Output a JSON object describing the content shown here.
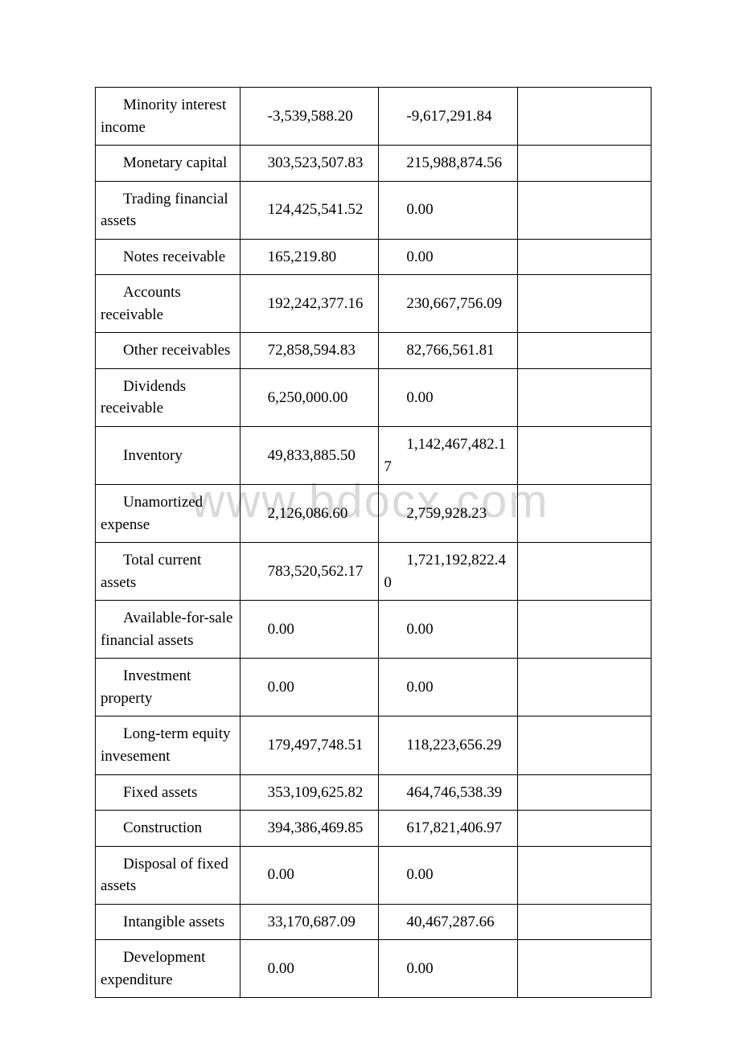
{
  "watermark": "www.bdocx.com",
  "table": {
    "columns": [
      "label",
      "value1",
      "value2",
      "value3"
    ],
    "column_widths_pct": [
      26,
      25,
      25,
      24
    ],
    "border_color": "#000000",
    "font_family": "Times New Roman",
    "font_size_pt": 14,
    "rows": [
      {
        "label": "Minority interest income",
        "value1": "-3,539,588.20",
        "value2": "-9,617,291.84",
        "value3": ""
      },
      {
        "label": "Monetary capital",
        "value1": "303,523,507.83",
        "value2": "215,988,874.56",
        "value3": ""
      },
      {
        "label": "Trading financial assets",
        "value1": "124,425,541.52",
        "value2": "0.00",
        "value3": ""
      },
      {
        "label": "Notes receivable",
        "value1": "165,219.80",
        "value2": "0.00",
        "value3": ""
      },
      {
        "label": "Accounts receivable",
        "value1": "192,242,377.16",
        "value2": "230,667,756.09",
        "value3": ""
      },
      {
        "label": "Other receivables",
        "value1": "72,858,594.83",
        "value2": "82,766,561.81",
        "value3": ""
      },
      {
        "label": "Dividends receivable",
        "value1": "6,250,000.00",
        "value2": "0.00",
        "value3": ""
      },
      {
        "label": "Inventory",
        "value1": "49,833,885.50",
        "value2": "1,142,467,482.17",
        "value3": ""
      },
      {
        "label": "Unamortized expense",
        "value1": "2,126,086.60",
        "value2": "2,759,928.23",
        "value3": ""
      },
      {
        "label": "Total current assets",
        "value1": "783,520,562.17",
        "value2": "1,721,192,822.40",
        "value3": ""
      },
      {
        "label": "Available-for-sale financial assets",
        "value1": "0.00",
        "value2": "0.00",
        "value3": ""
      },
      {
        "label": "Investment property",
        "value1": "0.00",
        "value2": "0.00",
        "value3": ""
      },
      {
        "label": "Long-term equity invesement",
        "value1": "179,497,748.51",
        "value2": "118,223,656.29",
        "value3": ""
      },
      {
        "label": "Fixed assets",
        "value1": "353,109,625.82",
        "value2": "464,746,538.39",
        "value3": ""
      },
      {
        "label": "Construction",
        "value1": "394,386,469.85",
        "value2": "617,821,406.97",
        "value3": ""
      },
      {
        "label": "Disposal of fixed assets",
        "value1": "0.00",
        "value2": "0.00",
        "value3": ""
      },
      {
        "label": "Intangible assets",
        "value1": "33,170,687.09",
        "value2": "40,467,287.66",
        "value3": ""
      },
      {
        "label": "Development expenditure",
        "value1": "0.00",
        "value2": "0.00",
        "value3": ""
      }
    ]
  }
}
